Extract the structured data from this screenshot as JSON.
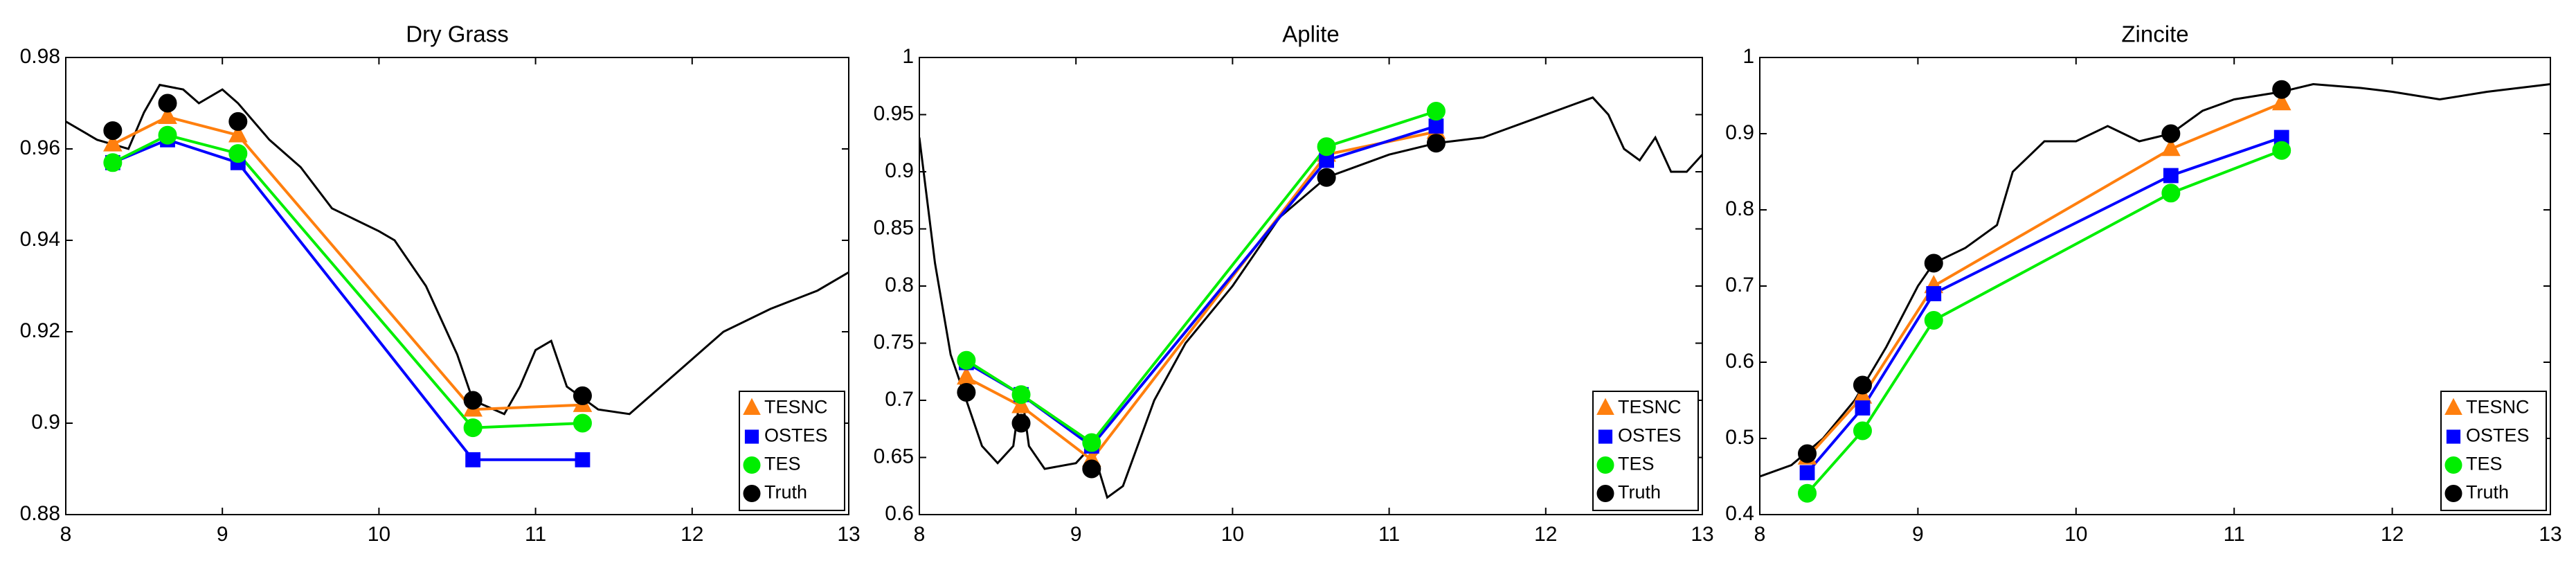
{
  "chart_data": [
    {
      "type": "line",
      "title": "Dry Grass",
      "xlim": [
        8,
        13
      ],
      "ylim": [
        0.88,
        0.98
      ],
      "xticks": [
        8,
        9,
        10,
        11,
        12,
        13
      ],
      "yticks": [
        0.88,
        0.9,
        0.92,
        0.94,
        0.96,
        0.98
      ],
      "legend": "lower right",
      "x": [
        8.3,
        8.65,
        9.1,
        10.6,
        11.3
      ],
      "series": [
        {
          "name": "TESNC",
          "color": "#ff7f0e",
          "marker": "triangle",
          "line": true,
          "values": [
            0.961,
            0.967,
            0.963,
            0.903,
            0.904
          ]
        },
        {
          "name": "OSTES",
          "color": "#0000ff",
          "marker": "square",
          "line": true,
          "values": [
            0.957,
            0.962,
            0.957,
            0.892,
            0.892
          ]
        },
        {
          "name": "TES",
          "color": "#00ee00",
          "marker": "circle",
          "line": true,
          "values": [
            0.957,
            0.963,
            0.959,
            0.899,
            0.9
          ]
        },
        {
          "name": "Truth",
          "color": "#000000",
          "marker": "circle",
          "line": false,
          "values": [
            0.964,
            0.97,
            0.966,
            0.905,
            0.906
          ]
        }
      ],
      "spectrum": {
        "color": "#000000",
        "x": [
          8,
          8.2,
          8.4,
          8.5,
          8.6,
          8.75,
          8.85,
          9,
          9.1,
          9.3,
          9.5,
          9.7,
          10,
          10.1,
          10.3,
          10.5,
          10.6,
          10.8,
          10.9,
          11,
          11.1,
          11.2,
          11.4,
          11.6,
          11.8,
          12,
          12.2,
          12.5,
          12.8,
          13
        ],
        "values": [
          0.966,
          0.962,
          0.96,
          0.968,
          0.974,
          0.973,
          0.97,
          0.973,
          0.97,
          0.962,
          0.956,
          0.947,
          0.942,
          0.94,
          0.93,
          0.915,
          0.905,
          0.902,
          0.908,
          0.916,
          0.918,
          0.908,
          0.903,
          0.902,
          0.908,
          0.914,
          0.92,
          0.925,
          0.929,
          0.933
        ]
      }
    },
    {
      "type": "line",
      "title": "Aplite",
      "xlim": [
        8,
        13
      ],
      "ylim": [
        0.6,
        1
      ],
      "xticks": [
        8,
        9,
        10,
        11,
        12,
        13
      ],
      "yticks": [
        0.6,
        0.65,
        0.7,
        0.75,
        0.8,
        0.85,
        0.9,
        0.95,
        1
      ],
      "legend": "lower right",
      "x": [
        8.3,
        8.65,
        9.1,
        10.6,
        11.3
      ],
      "series": [
        {
          "name": "TESNC",
          "color": "#ff7f0e",
          "marker": "triangle",
          "line": true,
          "values": [
            0.72,
            0.695,
            0.648,
            0.915,
            0.935
          ]
        },
        {
          "name": "OSTES",
          "color": "#0000ff",
          "marker": "square",
          "line": true,
          "values": [
            0.733,
            0.705,
            0.66,
            0.91,
            0.94
          ]
        },
        {
          "name": "TES",
          "color": "#00ee00",
          "marker": "circle",
          "line": true,
          "values": [
            0.735,
            0.705,
            0.663,
            0.922,
            0.953
          ]
        },
        {
          "name": "Truth",
          "color": "#000000",
          "marker": "circle",
          "line": false,
          "values": [
            0.707,
            0.68,
            0.64,
            0.895,
            0.925
          ]
        }
      ],
      "spectrum": {
        "color": "#000000",
        "x": [
          8,
          8.1,
          8.2,
          8.3,
          8.4,
          8.5,
          8.6,
          8.65,
          8.7,
          8.8,
          9,
          9.1,
          9.2,
          9.3,
          9.5,
          9.7,
          10,
          10.3,
          10.6,
          10.8,
          11,
          11.3,
          11.6,
          11.9,
          12.2,
          12.3,
          12.4,
          12.5,
          12.6,
          12.7,
          12.8,
          12.9,
          13
        ],
        "values": [
          0.93,
          0.82,
          0.74,
          0.7,
          0.66,
          0.645,
          0.66,
          0.71,
          0.66,
          0.64,
          0.645,
          0.66,
          0.615,
          0.625,
          0.7,
          0.75,
          0.8,
          0.86,
          0.895,
          0.905,
          0.915,
          0.925,
          0.93,
          0.945,
          0.96,
          0.965,
          0.95,
          0.92,
          0.91,
          0.93,
          0.9,
          0.9,
          0.915
        ]
      }
    },
    {
      "type": "line",
      "title": "Zincite",
      "xlim": [
        8,
        13
      ],
      "ylim": [
        0.4,
        1
      ],
      "xticks": [
        8,
        9,
        10,
        11,
        12,
        13
      ],
      "yticks": [
        0.4,
        0.5,
        0.6,
        0.7,
        0.8,
        0.9,
        1
      ],
      "legend": "lower right",
      "x": [
        8.3,
        8.65,
        9.1,
        10.6,
        11.3
      ],
      "series": [
        {
          "name": "TESNC",
          "color": "#ff7f0e",
          "marker": "triangle",
          "line": true,
          "values": [
            0.475,
            0.555,
            0.7,
            0.88,
            0.94
          ]
        },
        {
          "name": "OSTES",
          "color": "#0000ff",
          "marker": "square",
          "line": true,
          "values": [
            0.455,
            0.54,
            0.69,
            0.845,
            0.895
          ]
        },
        {
          "name": "TES",
          "color": "#00ee00",
          "marker": "circle",
          "line": true,
          "values": [
            0.428,
            0.51,
            0.655,
            0.822,
            0.878
          ]
        },
        {
          "name": "Truth",
          "color": "#000000",
          "marker": "circle",
          "line": false,
          "values": [
            0.48,
            0.57,
            0.73,
            0.9,
            0.958
          ]
        }
      ],
      "spectrum": {
        "color": "#000000",
        "x": [
          8,
          8.2,
          8.4,
          8.6,
          8.8,
          9,
          9.1,
          9.3,
          9.5,
          9.6,
          9.8,
          10,
          10.2,
          10.4,
          10.6,
          10.8,
          11,
          11.3,
          11.5,
          11.8,
          12,
          12.3,
          12.6,
          13
        ],
        "values": [
          0.45,
          0.465,
          0.5,
          0.55,
          0.62,
          0.7,
          0.73,
          0.75,
          0.78,
          0.85,
          0.89,
          0.89,
          0.91,
          0.89,
          0.9,
          0.93,
          0.945,
          0.955,
          0.965,
          0.96,
          0.955,
          0.945,
          0.955,
          0.965
        ]
      }
    }
  ]
}
